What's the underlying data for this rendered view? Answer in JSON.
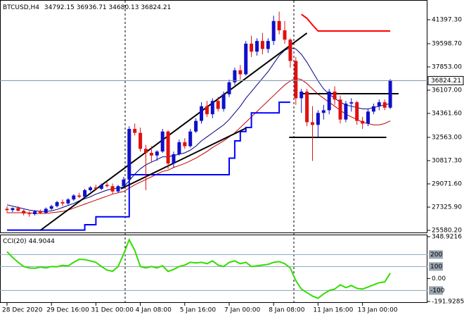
{
  "chart_data": [
    {
      "type": "candlestick",
      "symbol": "BTCUSD,H4",
      "categories": [
        "28 Dec 2020",
        null,
        null,
        null,
        null,
        null,
        null,
        null,
        "29 Dec 16:00",
        null,
        null,
        null,
        null,
        null,
        null,
        null,
        "31 Dec 00:00",
        null,
        null,
        null,
        null,
        null,
        null,
        null,
        "4 Jan 08:00",
        null,
        null,
        null,
        null,
        null,
        null,
        null,
        "5 Jan 16:00",
        null,
        null,
        null,
        null,
        null,
        null,
        null,
        "7 Jan 00:00",
        null,
        null,
        null,
        null,
        null,
        null,
        null,
        "8 Jan 08:00",
        null,
        null,
        null,
        null,
        null,
        null,
        null,
        "11 Jan 16:00",
        null,
        null,
        null,
        null,
        null,
        null,
        null,
        "13 Jan 00:00",
        null,
        null,
        null,
        null,
        null
      ],
      "open": [
        27200,
        27100,
        27250,
        27050,
        26850,
        26800,
        27000,
        26900,
        27200,
        27400,
        27700,
        27600,
        27900,
        28200,
        28100,
        28600,
        28800,
        28700,
        29000,
        28900,
        28500,
        28900,
        29400,
        33200,
        32900,
        31700,
        31400,
        31200,
        31500,
        33000,
        30600,
        31300,
        32200,
        31900,
        33000,
        33800,
        34900,
        34300,
        35300,
        34700,
        35800,
        36700,
        37600,
        37300,
        39600,
        39000,
        39800,
        39200,
        39800,
        41300,
        40600,
        39900,
        38300,
        35500,
        36000,
        33700,
        33500,
        34400,
        34600,
        36000,
        35400,
        33900,
        35100,
        35200,
        33800,
        33600,
        34500,
        34900,
        35200,
        34792.15
      ],
      "high": [
        27400,
        27300,
        27400,
        27150,
        27000,
        27100,
        27150,
        27300,
        27500,
        27800,
        27900,
        28000,
        28300,
        28400,
        28700,
        28900,
        29000,
        29100,
        29200,
        29100,
        29000,
        29600,
        33400,
        33600,
        33300,
        32000,
        31900,
        31600,
        33200,
        33100,
        31500,
        32400,
        32500,
        33200,
        34000,
        35200,
        35300,
        35500,
        35600,
        36000,
        36900,
        37800,
        38000,
        39800,
        40200,
        40000,
        40400,
        40000,
        41700,
        42000,
        41300,
        40000,
        38600,
        36200,
        36200,
        34900,
        34600,
        35000,
        36200,
        36400,
        35700,
        35300,
        35500,
        35300,
        34100,
        34700,
        35100,
        35400,
        35400,
        36936.71
      ],
      "low": [
        26900,
        26950,
        27000,
        26700,
        26600,
        26700,
        26800,
        26850,
        27100,
        27300,
        27400,
        27500,
        27800,
        28000,
        28000,
        28500,
        28600,
        28600,
        28800,
        28300,
        28400,
        28700,
        29300,
        32700,
        31500,
        28600,
        30700,
        30800,
        31400,
        30200,
        30300,
        31200,
        31700,
        31800,
        32900,
        33600,
        34100,
        34000,
        34500,
        34500,
        35600,
        36500,
        36900,
        37200,
        38600,
        38700,
        38800,
        38900,
        39500,
        40300,
        39600,
        37800,
        35000,
        34400,
        33400,
        30800,
        32600,
        33900,
        34300,
        35000,
        33600,
        33700,
        34500,
        33500,
        33200,
        33400,
        34300,
        34600,
        34600,
        34680.13
      ],
      "close": [
        27100,
        27250,
        27050,
        26850,
        26800,
        27000,
        26900,
        27200,
        27400,
        27700,
        27600,
        27900,
        28200,
        28100,
        28600,
        28800,
        28700,
        29000,
        28900,
        28500,
        28900,
        29400,
        33200,
        32900,
        31700,
        31400,
        31200,
        31500,
        33000,
        30600,
        31300,
        32200,
        31900,
        33000,
        33800,
        34900,
        34300,
        35300,
        34700,
        35800,
        36700,
        37600,
        37300,
        39600,
        39000,
        39800,
        39200,
        39800,
        41300,
        40600,
        39900,
        38300,
        35500,
        36000,
        33700,
        33500,
        34400,
        34600,
        36000,
        35400,
        33900,
        35100,
        35200,
        33800,
        33600,
        34500,
        34900,
        35200,
        34792.15,
        36824.21
      ],
      "up_color": "#1010c8",
      "down_color": "#e01010",
      "lines": [
        {
          "color": "#000080",
          "width": 1,
          "values": [
            27500,
            27400,
            27300,
            27200,
            27100,
            27050,
            27000,
            27000,
            27050,
            27150,
            27300,
            27450,
            27600,
            27800,
            27950,
            28100,
            28300,
            28450,
            28600,
            28700,
            28750,
            28850,
            29300,
            29800,
            30200,
            30500,
            30700,
            30900,
            31100,
            31100,
            31200,
            31300,
            31400,
            31600,
            31900,
            32300,
            32600,
            32900,
            33200,
            33500,
            33900,
            34400,
            34900,
            35500,
            36000,
            36500,
            37000,
            37500,
            38100,
            38700,
            39100,
            39300,
            39200,
            38800,
            38200,
            37500,
            36800,
            36200,
            35800,
            35500,
            35200,
            35000,
            34900,
            34800,
            34700,
            34700,
            34800,
            34900,
            35000,
            35100
          ]
        },
        {
          "color": "#c00000",
          "width": 1,
          "values": [
            26900,
            26900,
            26900,
            26900,
            26900,
            26850,
            26850,
            26850,
            26900,
            26950,
            27000,
            27100,
            27250,
            27400,
            27550,
            27700,
            27850,
            28000,
            28150,
            28300,
            28400,
            28500,
            28750,
            29000,
            29200,
            29400,
            29600,
            29800,
            30000,
            30100,
            30300,
            30450,
            30600,
            30800,
            31000,
            31250,
            31500,
            31800,
            32050,
            32300,
            32600,
            32900,
            33300,
            33700,
            34100,
            34500,
            34900,
            35300,
            35700,
            36100,
            36500,
            36800,
            37000,
            36900,
            36600,
            36200,
            35800,
            35500,
            35200,
            34900,
            34600,
            34300,
            34100,
            33900,
            33700,
            33600,
            33500,
            33500,
            33600,
            33800
          ]
        },
        {
          "color": "#0000ff",
          "width": 2,
          "step": true,
          "values": [
            25600,
            25600,
            25600,
            25600,
            25600,
            25600,
            25600,
            25600,
            25600,
            25600,
            25600,
            25600,
            25600,
            25600,
            26000,
            26000,
            26600,
            26600,
            26600,
            26600,
            26600,
            26600,
            29760,
            29760,
            29760,
            29760,
            29760,
            29760,
            29760,
            29760,
            29760,
            29760,
            29760,
            29760,
            29760,
            29760,
            29760,
            29760,
            29760,
            29760,
            31000,
            32300,
            33000,
            33300,
            34400,
            34400,
            34400,
            34400,
            34400,
            35200,
            35200,
            35200,
            null,
            null,
            null,
            null,
            null,
            null,
            null,
            null,
            null,
            null,
            null,
            null,
            null,
            null,
            null,
            null,
            null,
            null
          ]
        },
        {
          "color": "#ff0000",
          "width": 2,
          "values": [
            null,
            null,
            null,
            null,
            null,
            null,
            null,
            null,
            null,
            null,
            null,
            null,
            null,
            null,
            null,
            null,
            null,
            null,
            null,
            null,
            null,
            null,
            null,
            null,
            null,
            null,
            null,
            null,
            null,
            null,
            null,
            null,
            null,
            null,
            null,
            null,
            null,
            null,
            null,
            null,
            null,
            null,
            null,
            null,
            null,
            null,
            null,
            null,
            null,
            null,
            null,
            null,
            null,
            41800,
            41500,
            41000,
            40550,
            40550,
            40550,
            40550,
            40550,
            40550,
            40550,
            40550,
            40550,
            40550,
            40550,
            40550,
            40550,
            40550
          ]
        }
      ],
      "trendlines": [
        {
          "x": [
            6,
            54
          ],
          "y": [
            25580,
            40392
          ],
          "color": "#000000"
        },
        {
          "x": [
            20.5,
            43
          ],
          "y": [
            28700,
            33250
          ],
          "color": "#000000"
        },
        {
          "x": [
            53,
            70.5
          ],
          "y": [
            35843,
            35843
          ],
          "color": "#000000"
        },
        {
          "x": [
            50.8,
            68.3
          ],
          "y": [
            32563,
            32563
          ],
          "color": "#000000"
        }
      ],
      "ylim": [
        25421,
        42666
      ],
      "yticks": [
        {
          "value": 41397.3,
          "label": "41397.30"
        },
        {
          "value": 39598.7,
          "label": "39598.70"
        },
        {
          "value": 37853,
          "label": "37853.00"
        },
        {
          "value": 36107,
          "label": "36107.00"
        },
        {
          "value": 34361.6,
          "label": "34361.60"
        },
        {
          "value": 32563,
          "label": "32563.00"
        },
        {
          "value": 30817.3,
          "label": "30817.30"
        },
        {
          "value": 29071.6,
          "label": "29071.60"
        },
        {
          "value": 27325.9,
          "label": "27325.90"
        },
        {
          "value": 25580.2,
          "label": "25580.20"
        }
      ]
    },
    {
      "type": "line",
      "title": "CCI(20)",
      "color": "#33dd00",
      "values": [
        224,
        176,
        135,
        100,
        88,
        85,
        95,
        88,
        100,
        98,
        110,
        105,
        135,
        160,
        158,
        147,
        135,
        100,
        70,
        60,
        100,
        205,
        324,
        235,
        100,
        88,
        100,
        88,
        106,
        59,
        76,
        100,
        112,
        135,
        130,
        135,
        124,
        147,
        112,
        100,
        135,
        147,
        124,
        135,
        100,
        106,
        112,
        118,
        135,
        141,
        124,
        88,
        -18,
        -88,
        -118,
        -147,
        -165,
        -129,
        -100,
        -88,
        -53,
        -76,
        -59,
        -82,
        -88,
        -71,
        -53,
        -35,
        -29,
        44.9044
      ],
      "levels": [
        200,
        100,
        -100
      ],
      "level_color": "#8fa4b8",
      "ylim": [
        -191.9285,
        348.9216
      ],
      "yticks": [
        348.9216,
        {
          "value": 0,
          "label": "0.00"
        },
        -191.9285
      ]
    }
  ]
}
